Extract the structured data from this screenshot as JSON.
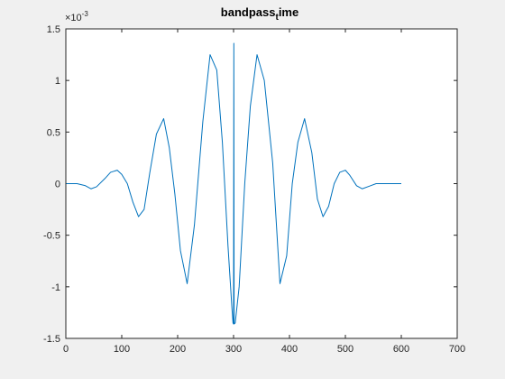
{
  "chart_data": {
    "type": "line",
    "title_main": "bandpass",
    "title_sub": "t",
    "title_tail": "ime",
    "exponent_base": "×10",
    "exponent_power": "-3",
    "xlim": [
      0,
      700
    ],
    "ylim": [
      -1.5,
      1.5
    ],
    "xticks": [
      0,
      100,
      200,
      300,
      400,
      500,
      600,
      700
    ],
    "xtick_labels": [
      "0",
      "100",
      "200",
      "300",
      "400",
      "500",
      "600",
      "700"
    ],
    "yticks": [
      -1.5,
      -1,
      -0.5,
      0,
      0.5,
      1,
      1.5
    ],
    "ytick_labels": [
      "-1.5",
      "-1",
      "-0.5",
      "0",
      "0.5",
      "1",
      "1.5"
    ],
    "grid": false,
    "line_color": "#0072bd",
    "series": [
      {
        "x": [
          0,
          20,
          35,
          45,
          55,
          70,
          80,
          92,
          100,
          110,
          120,
          130,
          140,
          150,
          162,
          175,
          185,
          195,
          205,
          217,
          230,
          245,
          258,
          270,
          280,
          290,
          297,
          299,
          300,
          300.5,
          301,
          303,
          310,
          320,
          330,
          342,
          355,
          370,
          383,
          395,
          405,
          415,
          427,
          440,
          450,
          460,
          470,
          480,
          490,
          500,
          508,
          520,
          530,
          545,
          555,
          565,
          580,
          600
        ],
        "y": [
          0,
          0,
          -0.02,
          -0.05,
          -0.03,
          0.05,
          0.11,
          0.13,
          0.09,
          0,
          -0.18,
          -0.32,
          -0.25,
          0.1,
          0.48,
          0.63,
          0.35,
          -0.1,
          -0.65,
          -0.97,
          -0.4,
          0.6,
          1.25,
          1.1,
          0.4,
          -0.6,
          -1.2,
          -1.35,
          -1.36,
          1.36,
          -1.36,
          -1.35,
          -1.0,
          0,
          0.75,
          1.25,
          1.0,
          0.2,
          -0.97,
          -0.7,
          0,
          0.4,
          0.63,
          0.3,
          -0.15,
          -0.32,
          -0.22,
          0,
          0.11,
          0.13,
          0.08,
          -0.02,
          -0.05,
          -0.02,
          0,
          0,
          0,
          0
        ]
      }
    ]
  }
}
